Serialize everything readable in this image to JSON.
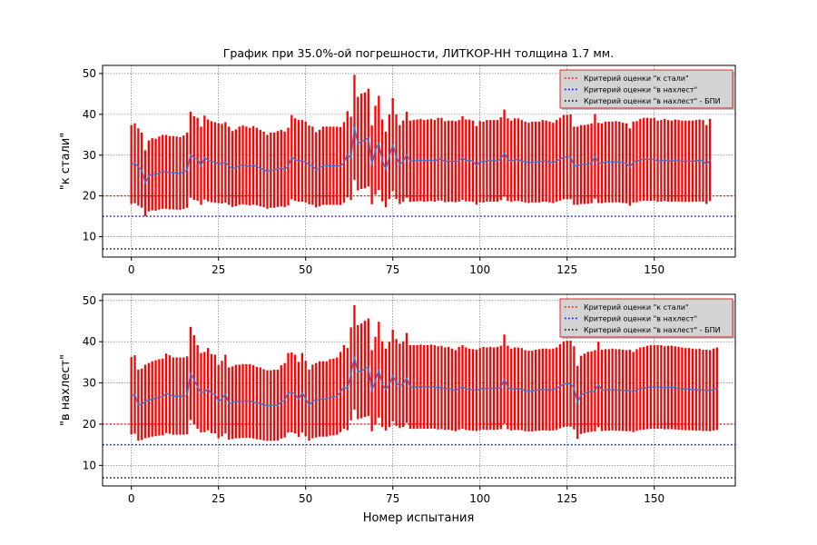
{
  "title": "График при 35.0%-ой погрешности, ЛИТКОР-НН толщина 1.7 мм.",
  "xlabel": "Номер испытания",
  "colors": {
    "errorbar": "#ff0000",
    "line": "#4472c4",
    "criterion_steel": "#ff0000",
    "criterion_overlap": "#0000ff",
    "criterion_overlap_bpi": "#000000",
    "legend_bg": "#d3d3d3",
    "legend_border": "#cc0000"
  },
  "chart_data": [
    {
      "type": "line",
      "ylabel": "\"к стали\"",
      "xlim": [
        -8.25,
        173.25
      ],
      "ylim": [
        5,
        52
      ],
      "xticks": [
        0,
        25,
        50,
        75,
        100,
        125,
        150
      ],
      "yticks": [
        10,
        20,
        30,
        40,
        50
      ],
      "grid": true,
      "legend_placement": "top-right",
      "error_fraction": 0.35,
      "reference_lines": [
        {
          "name": "Критерий оценки \"к стали\"",
          "y": 20,
          "color": "#ff0000"
        },
        {
          "name": "Критерий оценки \"в нахлест\"",
          "y": 15,
          "color": "#0000ff"
        },
        {
          "name": "Критерий оценки \"в нахлест\" - БПИ",
          "y": 7,
          "color": "#000000"
        }
      ],
      "series": [
        {
          "values": [
            27.7,
            28.0,
            27.1,
            26.3,
            23.1,
            24.9,
            25.3,
            25.2,
            25.6,
            25.9,
            25.9,
            25.7,
            25.7,
            25.6,
            25.5,
            25.8,
            26.3,
            30.1,
            29.3,
            29.0,
            27.4,
            29.4,
            28.7,
            28.4,
            28.2,
            28.0,
            27.9,
            28.2,
            27.4,
            26.6,
            26.9,
            27.4,
            27.6,
            27.4,
            27.2,
            27.5,
            27.2,
            26.8,
            26.5,
            25.9,
            26.3,
            26.3,
            26.6,
            26.8,
            26.5,
            27.2,
            29.5,
            28.9,
            28.6,
            28.6,
            28.3,
            27.6,
            27.4,
            26.4,
            26.8,
            27.4,
            27.4,
            27.4,
            27.4,
            27.4,
            27.3,
            28.2,
            30.2,
            29.2,
            36.8,
            32.8,
            33.4,
            33.6,
            34.3,
            27.6,
            31.2,
            33.0,
            28.7,
            26.5,
            29.6,
            32.6,
            29.6,
            27.7,
            28.5,
            30.1,
            28.5,
            28.6,
            28.7,
            28.8,
            28.6,
            28.7,
            28.8,
            28.6,
            29.0,
            29.0,
            28.4,
            28.5,
            28.5,
            28.4,
            28.6,
            29.3,
            28.7,
            28.7,
            28.5,
            27.5,
            28.4,
            28.3,
            28.6,
            28.6,
            28.6,
            28.6,
            29.1,
            30.5,
            28.9,
            28.5,
            28.9,
            28.9,
            28.6,
            28.3,
            28.1,
            28.3,
            28.3,
            28.3,
            28.6,
            28.5,
            28.3,
            28.1,
            28.6,
            29.0,
            29.5,
            29.5,
            29.6,
            27.4,
            27.4,
            27.7,
            27.7,
            27.8,
            28.0,
            29.7,
            28.1,
            28.0,
            28.3,
            28.3,
            28.3,
            28.4,
            28.3,
            28.1,
            28.0,
            27.1,
            28.3,
            28.4,
            28.8,
            29.0,
            29.0,
            28.9,
            29.0,
            28.5,
            28.6,
            28.8,
            28.6,
            28.5,
            28.7,
            28.6,
            28.5,
            28.5,
            28.5,
            28.5,
            28.6,
            28.7,
            28.6,
            27.7,
            28.8
          ]
        }
      ]
    },
    {
      "type": "line",
      "ylabel": "\"в нахлест\"",
      "xlim": [
        -8.25,
        173.25
      ],
      "ylim": [
        5,
        51.5
      ],
      "xticks": [
        0,
        25,
        50,
        75,
        100,
        125,
        150
      ],
      "yticks": [
        10,
        20,
        30,
        40,
        50
      ],
      "grid": true,
      "legend_placement": "top-right",
      "error_fraction": 0.35,
      "reference_lines": [
        {
          "name": "Критерий оценки \"к стали\"",
          "y": 20,
          "color": "#ff0000"
        },
        {
          "name": "Критерий оценки \"в нахлест\"",
          "y": 15,
          "color": "#0000ff"
        },
        {
          "name": "Критерий оценки \"в нахлест\" - БПИ",
          "y": 7,
          "color": "#000000"
        }
      ],
      "series": [
        {
          "values": [
            26.9,
            27.2,
            24.6,
            24.8,
            25.5,
            25.8,
            26.1,
            26.3,
            26.5,
            26.6,
            27.5,
            27.2,
            26.8,
            26.8,
            26.8,
            26.8,
            27.0,
            32.3,
            30.8,
            29.0,
            27.6,
            27.8,
            28.5,
            27.4,
            27.3,
            25.5,
            26.2,
            27.3,
            25.0,
            25.2,
            25.5,
            25.5,
            25.6,
            25.6,
            25.6,
            25.4,
            25.1,
            25.0,
            24.7,
            24.5,
            24.5,
            24.6,
            24.6,
            25.4,
            25.8,
            27.6,
            27.7,
            27.3,
            26.0,
            27.6,
            26.2,
            24.6,
            25.5,
            25.8,
            26.1,
            26.1,
            26.1,
            26.5,
            26.6,
            26.8,
            27.8,
            29.0,
            28.5,
            32.2,
            36.2,
            32.6,
            32.9,
            33.4,
            33.8,
            28.1,
            30.5,
            33.2,
            29.7,
            28.4,
            29.6,
            31.8,
            30.1,
            29.3,
            29.7,
            31.2,
            29.0,
            29.0,
            29.0,
            29.1,
            29.0,
            29.0,
            29.1,
            29.0,
            28.8,
            28.9,
            28.6,
            28.7,
            28.4,
            28.1,
            28.7,
            29.0,
            28.6,
            28.4,
            28.3,
            28.2,
            28.5,
            28.7,
            28.6,
            28.7,
            28.6,
            28.7,
            28.9,
            30.9,
            28.9,
            28.4,
            28.6,
            28.6,
            28.5,
            28.1,
            28.0,
            28.0,
            28.2,
            28.3,
            28.4,
            28.4,
            28.3,
            28.4,
            28.6,
            29.2,
            29.7,
            29.8,
            29.8,
            28.8,
            25.3,
            27.1,
            27.5,
            27.8,
            27.9,
            28.1,
            29.6,
            28.2,
            28.3,
            28.3,
            28.4,
            28.3,
            28.3,
            28.2,
            28.1,
            28.2,
            27.8,
            28.3,
            28.6,
            28.7,
            28.9,
            29.0,
            29.0,
            29.0,
            29.0,
            28.8,
            28.9,
            28.9,
            28.8,
            28.7,
            28.6,
            28.5,
            28.5,
            28.4,
            28.3,
            28.4,
            28.2,
            28.2,
            28.1,
            28.4,
            28.6
          ]
        }
      ]
    }
  ]
}
